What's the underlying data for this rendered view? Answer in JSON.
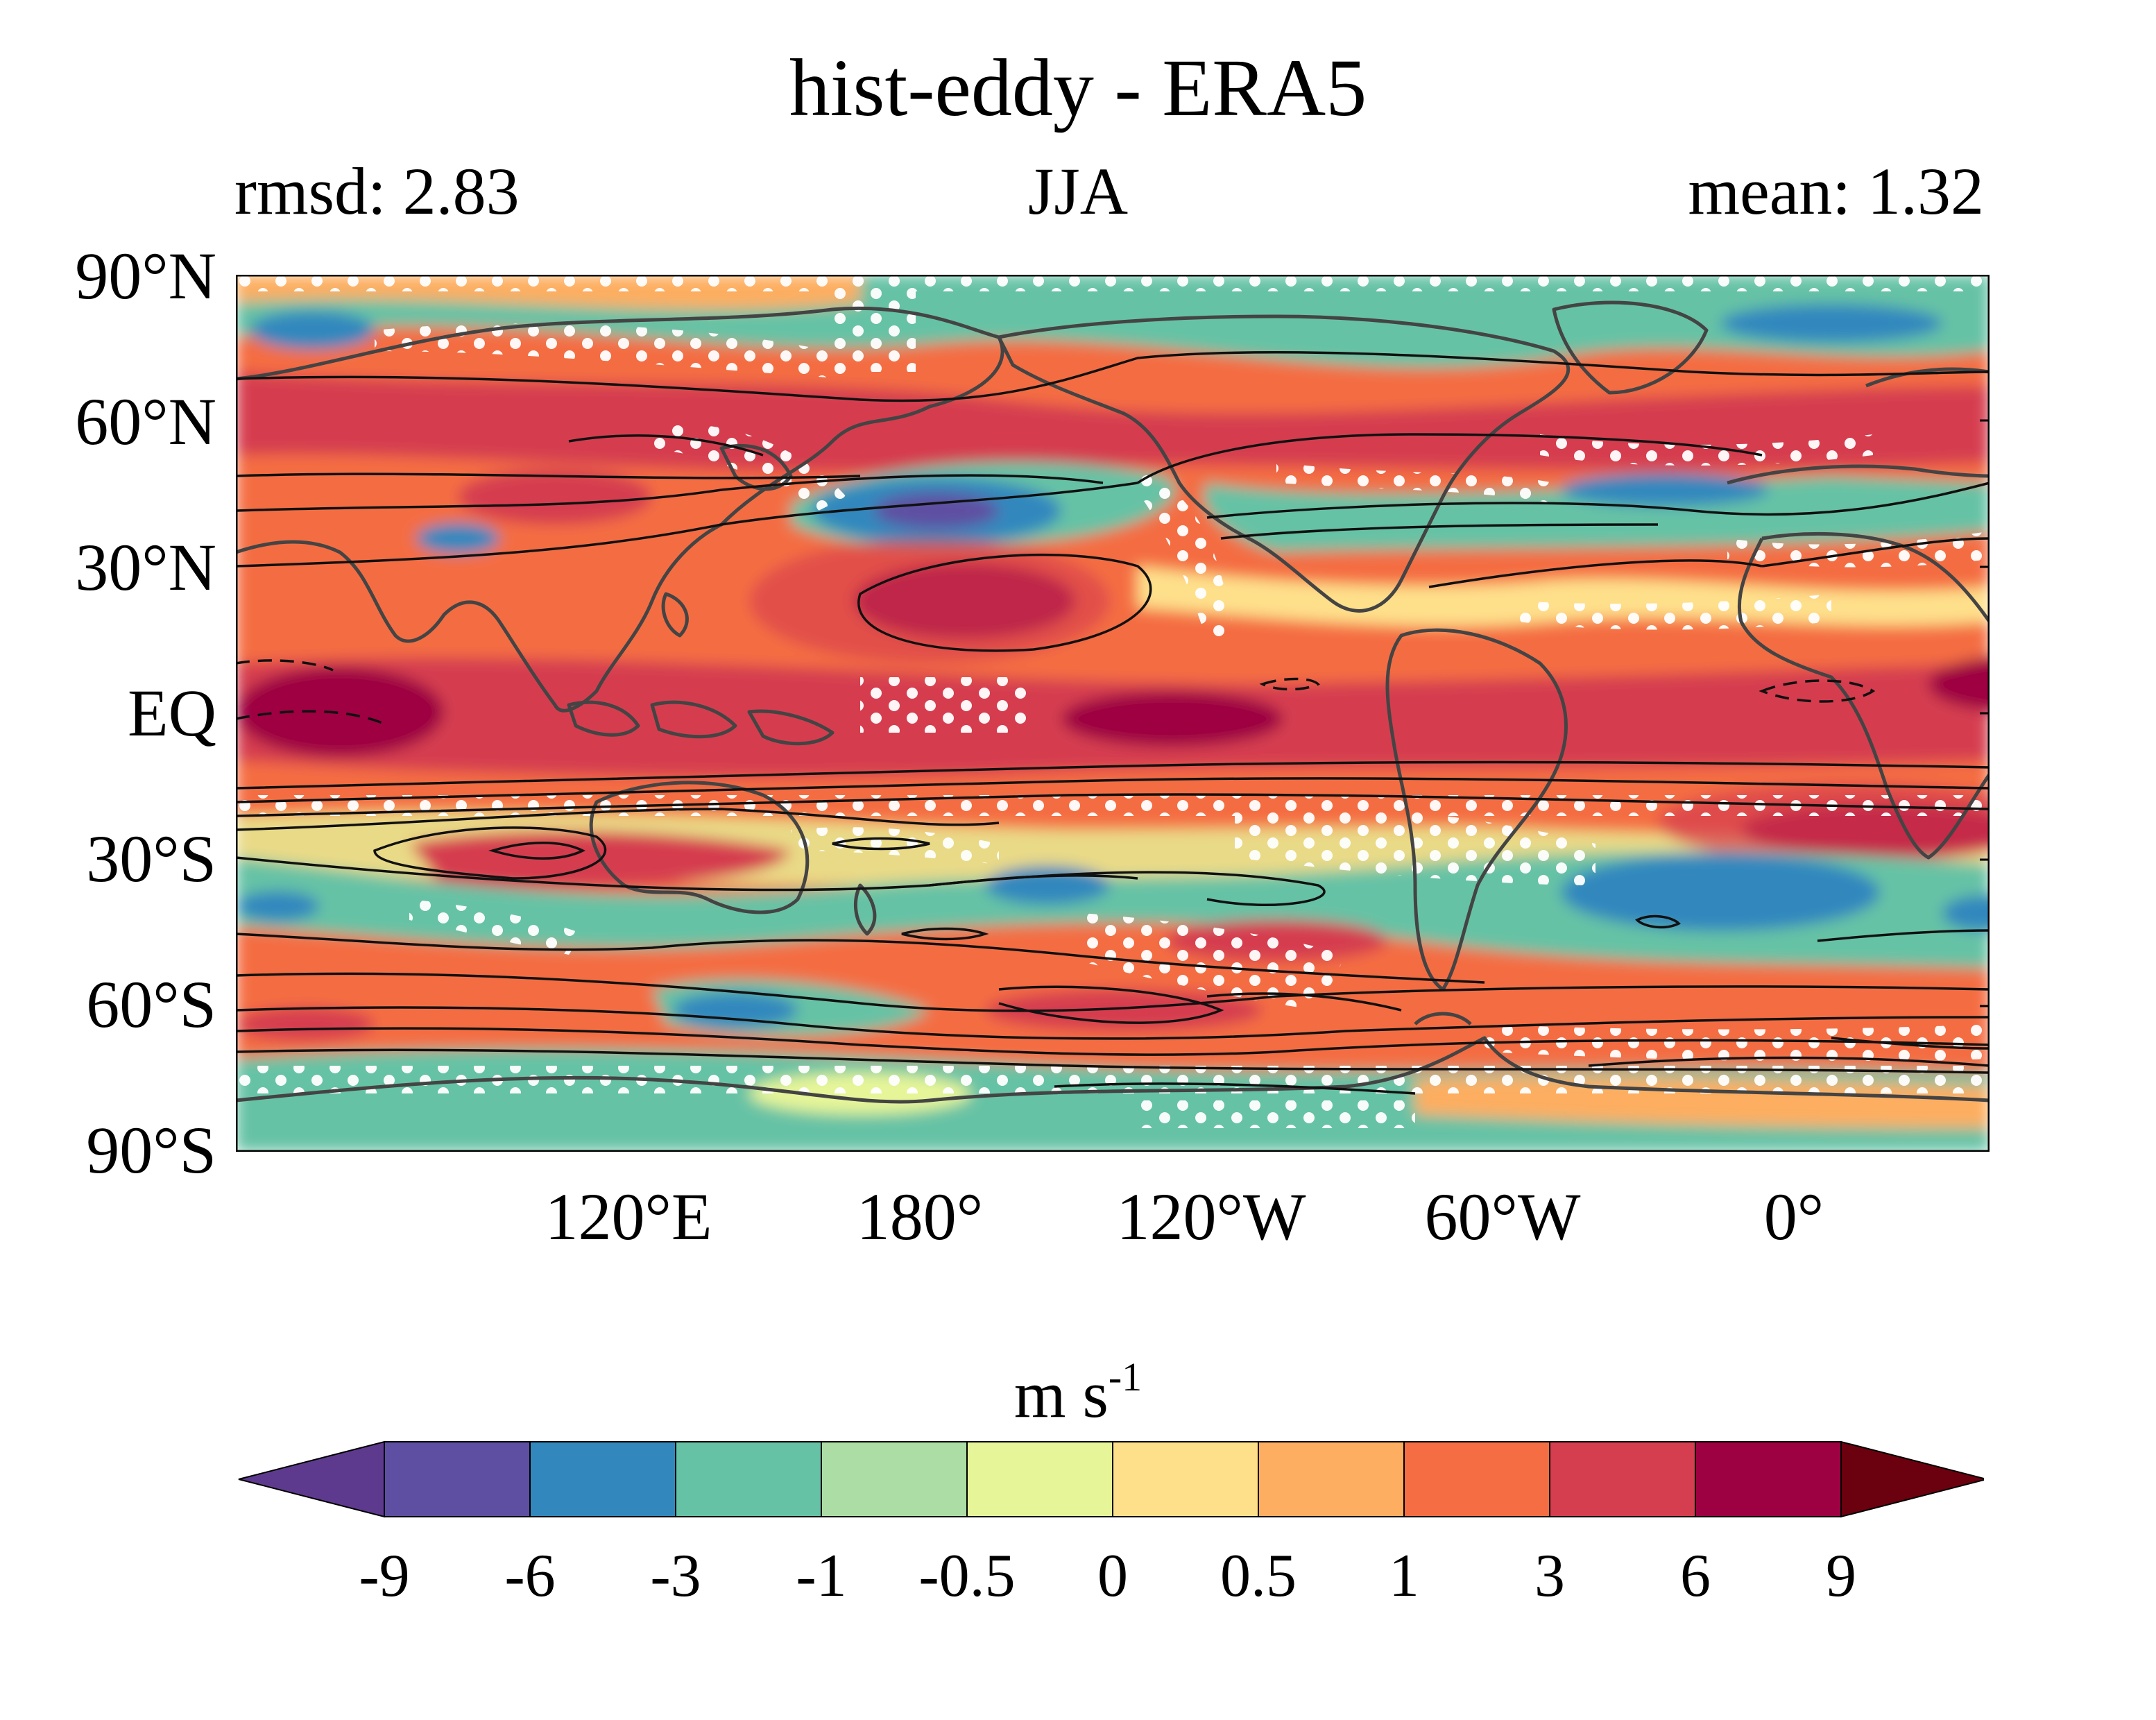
{
  "title": "hist-eddy - ERA5",
  "subtitle_left": "rmsd: 2.83",
  "subtitle_center": "JJA",
  "subtitle_right": "mean: 1.32",
  "lat_labels": [
    "90°N",
    "60°N",
    "30°N",
    "EQ",
    "30°S",
    "60°S",
    "90°S"
  ],
  "lon_labels": [
    "120°E",
    "180°",
    "120°W",
    "60°W",
    "0°"
  ],
  "colorbar": {
    "units_base": "m s",
    "units_exp": "-1",
    "levels": [
      "-9",
      "-6",
      "-3",
      "-1",
      "-0.5",
      "0",
      "0.5",
      "1",
      "3",
      "6",
      "9"
    ],
    "colors": [
      "#5e4fa2",
      "#3288bd",
      "#66c2a5",
      "#abdda4",
      "#e6f598",
      "#fee08b",
      "#fdae61",
      "#f46d43",
      "#d53e4f",
      "#9e0142"
    ],
    "under_color": "#5e3a8e",
    "over_color": "#6b000e"
  },
  "colors": {
    "coastline": "#444444",
    "contour": "#111111",
    "stipple": "#ffffff"
  }
}
